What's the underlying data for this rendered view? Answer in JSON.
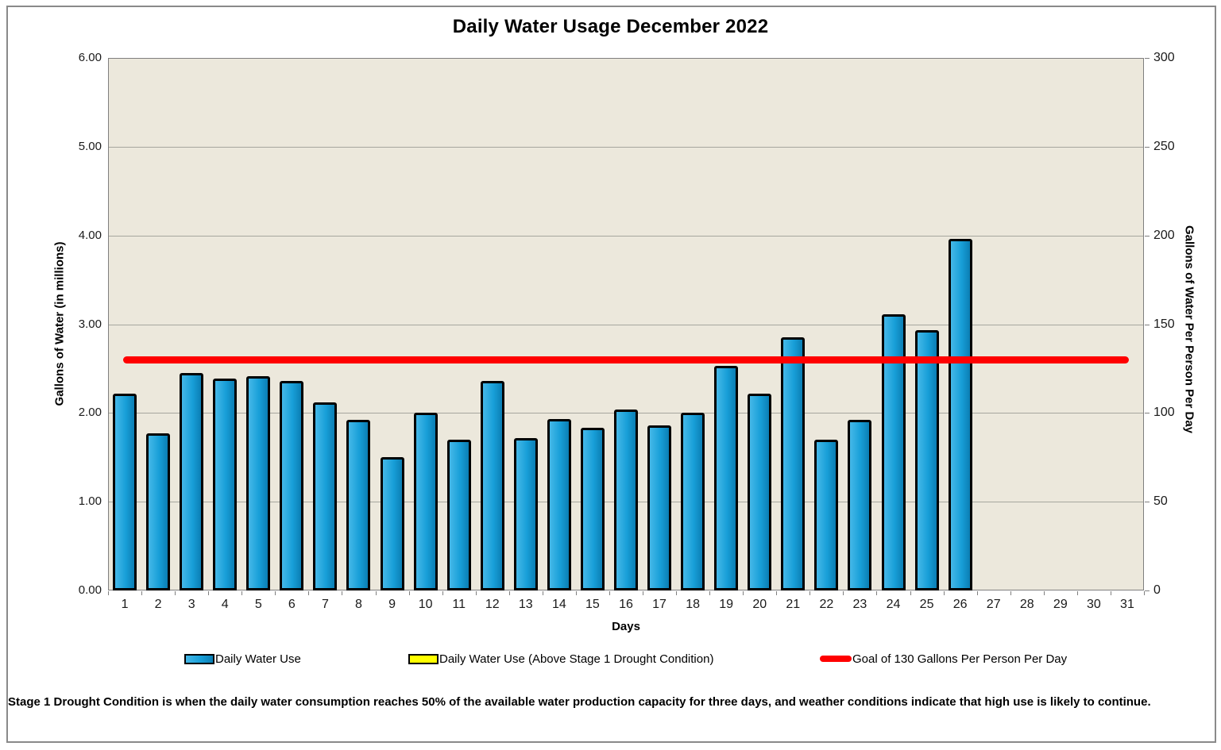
{
  "title": "Daily Water Usage December 2022",
  "chart_data": {
    "type": "bar",
    "title": "Daily Water Usage December 2022",
    "xlabel": "Days",
    "ylabel_left": "Gallons of Water (in millions)",
    "ylabel_right": "Gallons of Water Per Person Per Day",
    "categories": [
      1,
      2,
      3,
      4,
      5,
      6,
      7,
      8,
      9,
      10,
      11,
      12,
      13,
      14,
      15,
      16,
      17,
      18,
      19,
      20,
      21,
      22,
      23,
      24,
      25,
      26,
      27,
      28,
      29,
      30,
      31
    ],
    "series": [
      {
        "name": "Daily Water Use",
        "type": "bar",
        "values": [
          2.22,
          1.77,
          2.45,
          2.39,
          2.41,
          2.36,
          2.12,
          1.92,
          1.5,
          2.0,
          1.7,
          2.36,
          1.72,
          1.93,
          1.83,
          2.04,
          1.86,
          2.0,
          2.53,
          2.22,
          2.85,
          1.7,
          1.92,
          3.11,
          2.93,
          3.96,
          null,
          null,
          null,
          null,
          null
        ]
      },
      {
        "name": "Daily Water Use (Above Stage 1 Drought Condition)",
        "type": "bar",
        "values": [
          null,
          null,
          null,
          null,
          null,
          null,
          null,
          null,
          null,
          null,
          null,
          null,
          null,
          null,
          null,
          null,
          null,
          null,
          null,
          null,
          null,
          null,
          null,
          null,
          null,
          null,
          null,
          null,
          null,
          null,
          null
        ]
      },
      {
        "name": "Goal of 130 Gallons Per Person Per Day",
        "type": "line",
        "constant_value_right_axis": 130,
        "constant_value_left_axis": 2.6
      }
    ],
    "left_axis": {
      "min": 0,
      "max": 6,
      "step": 1,
      "tick_labels": [
        "6.00",
        "5.00",
        "4.00",
        "3.00",
        "2.00",
        "1.00",
        "0.00"
      ]
    },
    "right_axis": {
      "min": 0,
      "max": 300,
      "step": 50,
      "tick_labels": [
        "300",
        "250",
        "200",
        "150",
        "100",
        "50",
        "0"
      ]
    },
    "grid": true,
    "legend_position": "bottom"
  },
  "axis": {
    "left_title": "Gallons of Water (in millions)",
    "right_title": "Gallons of Water Per Person Per Day",
    "x_title": "Days"
  },
  "legend": {
    "items": [
      {
        "label": "Daily Water Use",
        "swatch": "blue-bar",
        "color": "#1aa3dd"
      },
      {
        "label": "Daily Water Use (Above Stage 1 Drought Condition)",
        "swatch": "yellow-bar",
        "color": "#ffff00"
      },
      {
        "label": "Goal of 130 Gallons Per Person Per Day",
        "swatch": "red-line",
        "color": "#ff0000"
      }
    ]
  },
  "footnote": "Stage 1 Drought Condition is when the daily water consumption reaches 50% of the available water production capacity for three days,  and weather conditions indicate that high use is likely to continue.",
  "colors": {
    "bar_fill": "#1aa3dd",
    "bar_border": "#000000",
    "plot_background": "#ece8dc",
    "gridline": "#a6a69e",
    "goal_line": "#ff0000",
    "frame_border": "#8a8a8a"
  }
}
